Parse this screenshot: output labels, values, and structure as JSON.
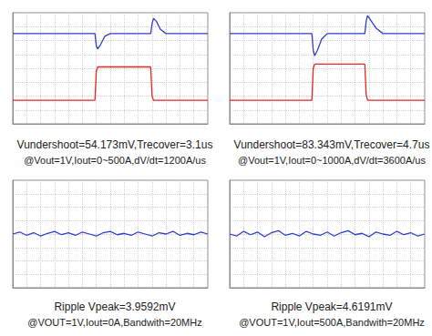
{
  "chart_data": [
    {
      "type": "line",
      "title": "Vundershoot=54.173mV,Trecover=3.1us",
      "subtitle": "@Vout=1V,Iout=0~500A,dV/dt=1200A/us",
      "x": [
        0,
        1,
        2,
        3,
        4,
        5,
        5.9,
        6.0,
        6.1,
        6.3,
        6.6,
        7,
        8,
        9,
        9.9,
        10.0,
        10.1,
        10.3,
        10.6,
        11,
        12,
        13,
        14
      ],
      "series": [
        {
          "color": "#2f3fd0",
          "values": [
            6.5,
            6.5,
            6.5,
            6.5,
            6.5,
            6.5,
            6.5,
            5.6,
            5.4,
            5.7,
            6.3,
            6.5,
            6.5,
            6.5,
            6.5,
            7.2,
            7.6,
            7.4,
            6.8,
            6.5,
            6.5,
            6.5,
            6.5
          ]
        },
        {
          "color": "#e02828",
          "values": [
            1.7,
            1.7,
            1.7,
            1.7,
            1.7,
            1.7,
            1.7,
            3.8,
            4.1,
            4.1,
            4.1,
            4.1,
            4.1,
            4.1,
            4.1,
            2.0,
            1.7,
            1.7,
            1.7,
            1.7,
            1.7,
            1.7,
            1.7
          ]
        }
      ],
      "xlim": [
        0,
        14
      ],
      "xticks": [
        0,
        1,
        2,
        3,
        4,
        5,
        6,
        7,
        8,
        9,
        10,
        11,
        12,
        13,
        14
      ],
      "ylim": [
        0,
        8
      ],
      "yticks": [
        0,
        1,
        2,
        3,
        4,
        5,
        6,
        7,
        8
      ],
      "grid": true,
      "tick_labels": false
    },
    {
      "type": "line",
      "title": "Vundershoot=83.343mV,Trecover=4.7us",
      "subtitle": "@Vout=1V,Iout=0~1000A,dV/dt=3600A/us",
      "x": [
        0,
        1,
        2,
        3,
        4,
        5,
        5.9,
        6.0,
        6.1,
        6.3,
        6.6,
        7,
        8,
        9,
        9.7,
        9.8,
        9.9,
        10.1,
        10.5,
        11,
        12,
        13,
        14
      ],
      "series": [
        {
          "color": "#2f3fd0",
          "values": [
            6.5,
            6.5,
            6.5,
            6.5,
            6.5,
            6.5,
            6.5,
            5.3,
            4.9,
            5.3,
            6.1,
            6.5,
            6.5,
            6.5,
            6.5,
            7.4,
            7.8,
            7.5,
            6.9,
            6.5,
            6.5,
            6.5,
            6.5
          ]
        },
        {
          "color": "#e02828",
          "values": [
            1.7,
            1.7,
            1.7,
            1.7,
            1.7,
            1.7,
            1.7,
            4.0,
            4.3,
            4.3,
            4.3,
            4.3,
            4.3,
            4.3,
            4.3,
            2.1,
            1.7,
            1.7,
            1.7,
            1.7,
            1.7,
            1.7,
            1.7
          ]
        }
      ],
      "xlim": [
        0,
        14
      ],
      "xticks": [
        0,
        1,
        2,
        3,
        4,
        5,
        6,
        7,
        8,
        9,
        10,
        11,
        12,
        13,
        14
      ],
      "ylim": [
        0,
        8
      ],
      "yticks": [
        0,
        1,
        2,
        3,
        4,
        5,
        6,
        7,
        8
      ],
      "grid": true,
      "tick_labels": false
    },
    {
      "type": "line",
      "title": "Ripple Vpeak=3.9592mV",
      "subtitle": "@VOUT=1V,Iout=0A,Bandwith=20MHz",
      "x": [
        0,
        0.5,
        1,
        1.5,
        2,
        2.5,
        3,
        3.5,
        4,
        4.5,
        5,
        5.5,
        6,
        6.5,
        7,
        7.5,
        8,
        8.5,
        9,
        9.5,
        10,
        10.5,
        11,
        11.5,
        12,
        12.5,
        13,
        13.5,
        14
      ],
      "series": [
        {
          "color": "#2f3fd0",
          "values": [
            4.0,
            4.15,
            3.9,
            4.1,
            3.85,
            4.05,
            4.2,
            3.95,
            4.1,
            3.9,
            4.15,
            4.0,
            3.85,
            4.1,
            4.2,
            3.95,
            4.05,
            3.9,
            4.15,
            4.0,
            3.85,
            4.1,
            4.0,
            4.2,
            3.9,
            4.05,
            3.95,
            4.15,
            4.0
          ]
        }
      ],
      "xlim": [
        0,
        14
      ],
      "xticks": [
        0,
        1,
        2,
        3,
        4,
        5,
        6,
        7,
        8,
        9,
        10,
        11,
        12,
        13,
        14
      ],
      "ylim": [
        0,
        8
      ],
      "yticks": [
        0,
        1,
        2,
        3,
        4,
        5,
        6,
        7,
        8
      ],
      "grid": true,
      "tick_labels": false
    },
    {
      "type": "line",
      "title": "Ripple Vpeak=4.6191mV",
      "subtitle": "@VOUT=1V,Iout=500A,Bandwith=20MHz",
      "x": [
        0,
        0.5,
        1,
        1.5,
        2,
        2.5,
        3,
        3.5,
        4,
        4.5,
        5,
        5.5,
        6,
        6.5,
        7,
        7.5,
        8,
        8.5,
        9,
        9.5,
        10,
        10.5,
        11,
        11.5,
        12,
        12.5,
        13,
        13.5,
        14
      ],
      "series": [
        {
          "color": "#2f3fd0",
          "values": [
            4.0,
            3.85,
            4.2,
            3.95,
            4.15,
            3.8,
            4.1,
            4.25,
            3.9,
            4.05,
            3.85,
            4.2,
            4.0,
            3.9,
            4.15,
            3.85,
            4.1,
            4.25,
            3.95,
            4.05,
            3.8,
            4.15,
            4.0,
            3.9,
            4.2,
            3.95,
            4.1,
            3.85,
            4.0
          ]
        }
      ],
      "xlim": [
        0,
        14
      ],
      "xticks": [
        0,
        1,
        2,
        3,
        4,
        5,
        6,
        7,
        8,
        9,
        10,
        11,
        12,
        13,
        14
      ],
      "ylim": [
        0,
        8
      ],
      "yticks": [
        0,
        1,
        2,
        3,
        4,
        5,
        6,
        7,
        8
      ],
      "grid": true,
      "tick_labels": false
    }
  ]
}
